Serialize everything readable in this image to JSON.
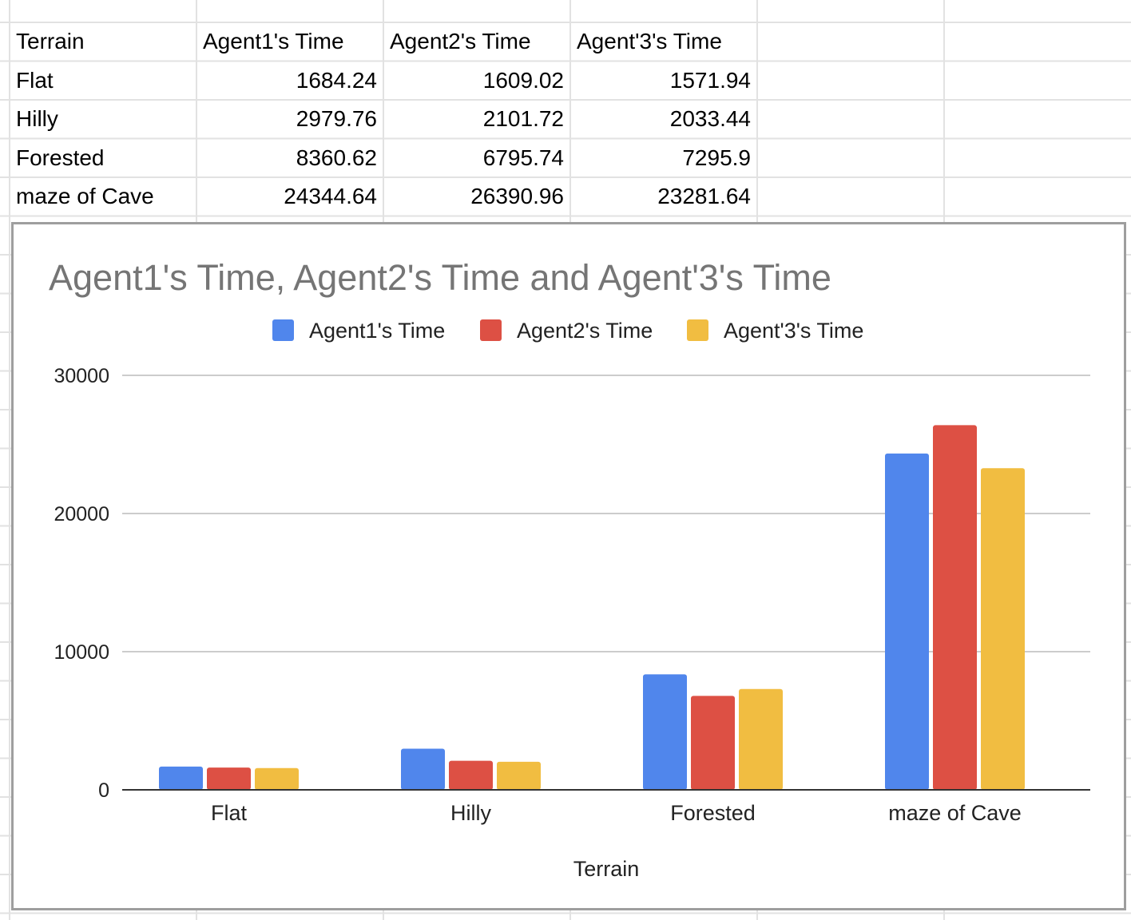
{
  "spreadsheet": {
    "headers": [
      "Terrain",
      "Agent1's Time",
      "Agent2's Time",
      "Agent'3's Time"
    ],
    "rows": [
      [
        "Flat",
        "1684.24",
        "1609.02",
        "1571.94"
      ],
      [
        "Hilly",
        "2979.76",
        "2101.72",
        "2033.44"
      ],
      [
        "Forested",
        "8360.62",
        "6795.74",
        "7295.9"
      ],
      [
        "maze of Cave",
        "24344.64",
        "26390.96",
        "23281.64"
      ]
    ]
  },
  "chart_data": {
    "type": "bar",
    "title": "Agent1's Time, Agent2's Time and Agent'3's Time",
    "xlabel": "Terrain",
    "ylabel": "",
    "categories": [
      "Flat",
      "Hilly",
      "Forested",
      "maze of Cave"
    ],
    "series": [
      {
        "name": "Agent1's Time",
        "color": "#5086ec",
        "values": [
          1684.24,
          2979.76,
          8360.62,
          24344.64
        ]
      },
      {
        "name": "Agent2's Time",
        "color": "#dd5044",
        "values": [
          1609.02,
          2101.72,
          6795.74,
          26390.96
        ]
      },
      {
        "name": "Agent'3's Time",
        "color": "#f1bd41",
        "values": [
          1571.94,
          2033.44,
          7295.9,
          23281.64
        ]
      }
    ],
    "ylim": [
      0,
      30000
    ],
    "yticks": [
      0,
      10000,
      20000,
      30000
    ],
    "legend": "top",
    "grid": true
  }
}
